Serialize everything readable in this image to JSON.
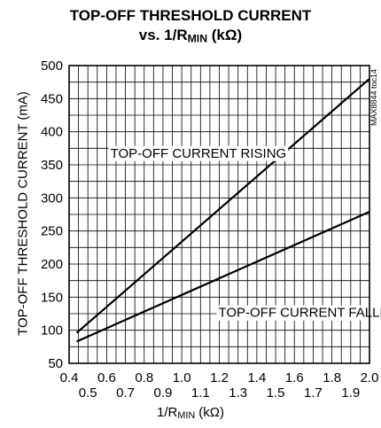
{
  "chart_data": {
    "type": "line",
    "title_line1": "TOP-OFF THRESHOLD CURRENT",
    "title_line2_prefix": "vs. 1/R",
    "title_line2_sub": "MIN",
    "title_line2_suffix": " (kΩ)",
    "xlabel_prefix": "1/R",
    "xlabel_sub": "MIN",
    "xlabel_suffix": " (kΩ)",
    "ylabel": "TOP-OFF THRESHOLD CURRENT (mA)",
    "xlim": [
      0.4,
      2.0
    ],
    "ylim": [
      50,
      500
    ],
    "x_ticks_upper": [
      "0.4",
      "0.6",
      "0.8",
      "1.0",
      "1.2",
      "1.4",
      "1.6",
      "1.8",
      "2.0"
    ],
    "x_ticks_lower": [
      "0.5",
      "0.7",
      "0.9",
      "1.1",
      "1.3",
      "1.5",
      "1.7",
      "1.9"
    ],
    "y_ticks": [
      "50",
      "100",
      "150",
      "200",
      "250",
      "300",
      "350",
      "400",
      "450",
      "500"
    ],
    "grid": true,
    "series": [
      {
        "points": [
          [
            0.44,
            96
          ],
          [
            2.0,
            480
          ]
        ]
      },
      {
        "points": [
          [
            0.44,
            83
          ],
          [
            2.0,
            279
          ]
        ]
      }
    ],
    "annotations": [
      {
        "text": "TOP-OFF CURRENT RISING",
        "x": 0.62,
        "y": 361
      },
      {
        "text": "TOP-OFF CURRENT FALLING",
        "x": 1.195,
        "y": 120
      }
    ],
    "code_label": "MAX8844 toc14"
  }
}
